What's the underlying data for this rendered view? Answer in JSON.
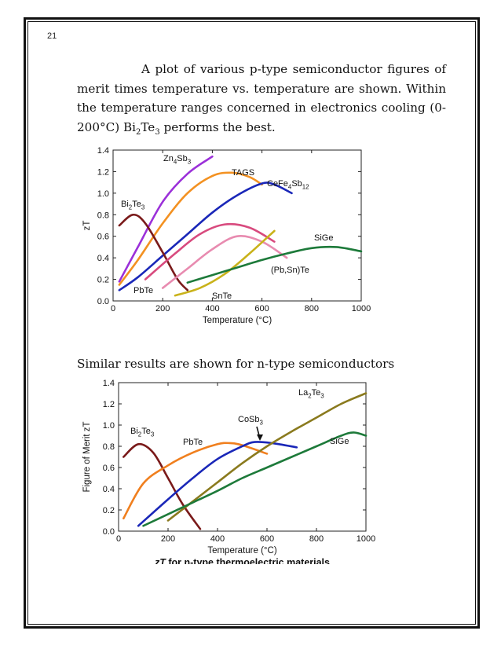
{
  "page_number": "21",
  "paragraph": {
    "text_before": "A plot of various p-type semiconductor figures of merit times temperature vs. temperature are shown. Within the temperature ranges concerned in electronics cooling (0-200°C) Bi",
    "sub1": "2",
    "mid": "Te",
    "sub2": "3",
    "text_after": " performs the best."
  },
  "caption_n_type": "Similar results are shown for n-type semiconductors",
  "chart_data": [
    {
      "type": "line",
      "title": "",
      "xlabel": "Temperature (°C)",
      "ylabel": "zT",
      "xlim": [
        0,
        1000
      ],
      "ylim": [
        0,
        1.4
      ],
      "xticks": [
        "0",
        "200",
        "400",
        "600",
        "800",
        "1000"
      ],
      "yticks": [
        "0.0",
        "0.2",
        "0.4",
        "0.6",
        "0.8",
        "1.0",
        "1.2",
        "1.4"
      ],
      "series": [
        {
          "name": "Zn4Sb3",
          "label_parts": [
            [
              "Zn",
              ""
            ],
            [
              "4",
              "s"
            ],
            [
              "Sb",
              ""
            ],
            [
              "3",
              "s"
            ]
          ],
          "color": "#9b30d9",
          "x": [
            25,
            100,
            200,
            300,
            400
          ],
          "y": [
            0.18,
            0.5,
            0.92,
            1.18,
            1.34
          ]
        },
        {
          "name": "TAGS",
          "label_parts": [
            [
              "TAGS",
              ""
            ]
          ],
          "color": "#f39121",
          "x": [
            25,
            100,
            200,
            300,
            400,
            480,
            550,
            600
          ],
          "y": [
            0.15,
            0.38,
            0.72,
            1.0,
            1.16,
            1.19,
            1.15,
            1.08
          ]
        },
        {
          "name": "CeFe4Sb12",
          "label_parts": [
            [
              "CeFe",
              ""
            ],
            [
              "4",
              "s"
            ],
            [
              "Sb",
              ""
            ],
            [
              "12",
              "s"
            ]
          ],
          "color": "#1a27b8",
          "x": [
            25,
            100,
            200,
            300,
            400,
            500,
            600,
            650,
            720
          ],
          "y": [
            0.1,
            0.22,
            0.42,
            0.62,
            0.82,
            0.98,
            1.09,
            1.08,
            1.0
          ]
        },
        {
          "name": "Bi2Te3",
          "label_parts": [
            [
              "Bi",
              ""
            ],
            [
              "2",
              "s"
            ],
            [
              "Te",
              ""
            ],
            [
              "3",
              "s"
            ]
          ],
          "color": "#7a1a1a",
          "x": [
            25,
            80,
            130,
            200,
            260,
            300
          ],
          "y": [
            0.7,
            0.8,
            0.72,
            0.45,
            0.2,
            0.1
          ]
        },
        {
          "name": "PbTe",
          "label_parts": [
            [
              "PbTe",
              ""
            ]
          ],
          "color": "#d84a7e",
          "x": [
            130,
            250,
            350,
            450,
            550,
            650
          ],
          "y": [
            0.2,
            0.44,
            0.62,
            0.71,
            0.68,
            0.55
          ]
        },
        {
          "name": "(Pb,Sn)Te",
          "label_parts": [
            [
              "(Pb,Sn)Te",
              ""
            ]
          ],
          "color": "#e88bb0",
          "x": [
            200,
            300,
            400,
            500,
            600,
            700
          ],
          "y": [
            0.12,
            0.3,
            0.48,
            0.6,
            0.55,
            0.4
          ]
        },
        {
          "name": "SnTe",
          "label_parts": [
            [
              "SnTe",
              ""
            ]
          ],
          "color": "#c9b21a",
          "x": [
            250,
            350,
            450,
            550,
            650
          ],
          "y": [
            0.05,
            0.12,
            0.25,
            0.44,
            0.65
          ]
        },
        {
          "name": "SiGe",
          "label_parts": [
            [
              "SiGe",
              ""
            ]
          ],
          "color": "#1d7a3a",
          "x": [
            300,
            400,
            500,
            600,
            700,
            800,
            900,
            1000
          ],
          "y": [
            0.17,
            0.24,
            0.31,
            0.38,
            0.44,
            0.49,
            0.5,
            0.46
          ]
        }
      ]
    },
    {
      "type": "line",
      "title": "zT for n-type thermoelectric materials",
      "xlabel": "Temperature (°C)",
      "ylabel": "Figure of Merit zT",
      "xlim": [
        0,
        1000
      ],
      "ylim": [
        0,
        1.4
      ],
      "xticks": [
        "0",
        "200",
        "400",
        "600",
        "800",
        "1000"
      ],
      "yticks": [
        "0.0",
        "0.2",
        "0.4",
        "0.6",
        "0.8",
        "1.0",
        "1.2",
        "1.4"
      ],
      "annotation": "CoSb3",
      "series": [
        {
          "name": "Bi2Te3",
          "label_parts": [
            [
              "Bi",
              ""
            ],
            [
              "2",
              "s"
            ],
            [
              "Te",
              ""
            ],
            [
              "3",
              "s"
            ]
          ],
          "color": "#7a1a1a",
          "x": [
            20,
            80,
            140,
            200,
            260,
            330
          ],
          "y": [
            0.7,
            0.82,
            0.74,
            0.5,
            0.25,
            0.02
          ]
        },
        {
          "name": "PbTe",
          "label_parts": [
            [
              "PbTe",
              ""
            ]
          ],
          "color": "#f07f1e",
          "x": [
            20,
            100,
            200,
            300,
            400,
            450,
            500,
            600
          ],
          "y": [
            0.12,
            0.45,
            0.62,
            0.74,
            0.82,
            0.83,
            0.81,
            0.73
          ]
        },
        {
          "name": "CoSb3",
          "label_parts": [
            [
              "CoSb",
              ""
            ],
            [
              "3",
              "s"
            ]
          ],
          "color": "#1a27b8",
          "x": [
            80,
            200,
            300,
            400,
            500,
            550,
            620,
            720
          ],
          "y": [
            0.05,
            0.3,
            0.5,
            0.68,
            0.8,
            0.84,
            0.83,
            0.79
          ]
        },
        {
          "name": "La2Te3",
          "label_parts": [
            [
              "La",
              ""
            ],
            [
              "2",
              "s"
            ],
            [
              "Te",
              ""
            ],
            [
              "3",
              "s"
            ]
          ],
          "color": "#8a7a1e",
          "x": [
            200,
            300,
            400,
            500,
            600,
            700,
            800,
            900,
            1000
          ],
          "y": [
            0.1,
            0.28,
            0.46,
            0.64,
            0.8,
            0.94,
            1.07,
            1.2,
            1.3
          ]
        },
        {
          "name": "SiGe",
          "label_parts": [
            [
              "SiGe",
              ""
            ]
          ],
          "color": "#1d7a3a",
          "x": [
            100,
            200,
            300,
            400,
            500,
            600,
            700,
            800,
            900,
            950,
            1000
          ],
          "y": [
            0.05,
            0.16,
            0.27,
            0.38,
            0.5,
            0.6,
            0.7,
            0.8,
            0.9,
            0.93,
            0.9
          ]
        }
      ]
    }
  ]
}
